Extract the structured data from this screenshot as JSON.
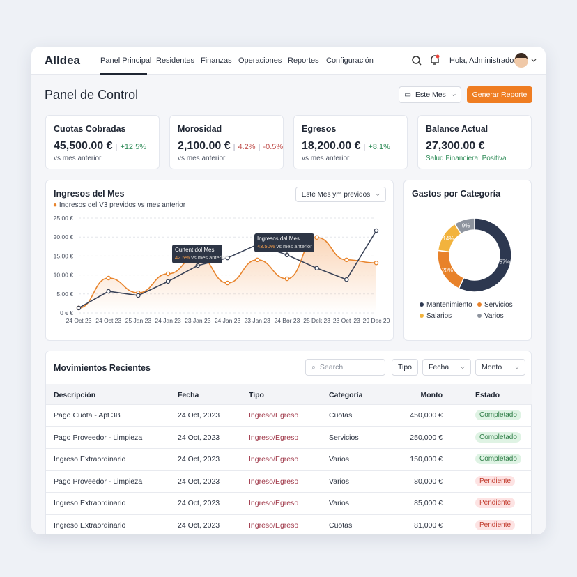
{
  "nav": {
    "logo": "Alldea",
    "items": [
      "Panel Principal",
      "Residentes",
      "Finanzas",
      "Operaciones",
      "Reportes",
      "Configuración"
    ],
    "greeting": "Hola, Administrador"
  },
  "header": {
    "title": "Panel de Control",
    "period": "Este Mes",
    "button": "Generar Reporte"
  },
  "kpis": [
    {
      "label": "Cuotas Cobradas",
      "value": "45,500.00 €",
      "change": "+12.5%",
      "note": "vs mes anterior"
    },
    {
      "label": "Morosidad",
      "value": "2,100.00 €",
      "change": "4.2%",
      "change2": "-0.5%",
      "note": "vs mes anterior"
    },
    {
      "label": "Egresos",
      "value": "18,200.00 €",
      "change": "+8.1%",
      "note": "vs mes anterior"
    },
    {
      "label": "Balance Actual",
      "value": "27,300.00 €",
      "note": "Salud Financiera: Positiva"
    }
  ],
  "income_chart": {
    "type": "line",
    "title": "Ingresos del Mes",
    "dropdown": "Este Mes ym previdos",
    "legend": "Ingresos del V3 previdos vs mes anterior",
    "categories": [
      "24 Oct 23",
      "24 Oct.23",
      "25 Jan 23",
      "24 Jan 23",
      "23 Jan 23",
      "24 Jan 23",
      "23 Jan 23",
      "24 Bor 23",
      "25 Dek 23",
      "23 Oet '23",
      "29 Dec 20"
    ],
    "series": [
      {
        "color": "#e8842c",
        "values": [
          1.3,
          9.2,
          5.3,
          10.3,
          15.1,
          7.9,
          14,
          9,
          19.9,
          14,
          13.2
        ]
      },
      {
        "color": "#3a4358",
        "values": [
          1.3,
          5.7,
          4.6,
          8.3,
          12.5,
          14.5,
          18,
          15.3,
          11.8,
          8.8,
          21.7
        ]
      }
    ],
    "ylim": [
      0,
      25
    ],
    "yticks": [
      {
        "value": 0,
        "label": "0 € €"
      },
      {
        "value": 5,
        "label": "5.00 €"
      },
      {
        "value": 10,
        "label": "10.00 €"
      },
      {
        "value": 15,
        "label": "15.00 €"
      },
      {
        "value": 20,
        "label": "20.00 €"
      },
      {
        "value": 25,
        "label": "25.00 €"
      }
    ],
    "tooltips": [
      {
        "title": "Curtent dol Mes",
        "highlight": "42.5%",
        "text": "vs mes anterior"
      },
      {
        "title": "Ingresos dal Mes",
        "highlight": "43.50%",
        "text": "vs mes anterior"
      }
    ]
  },
  "expense_chart": {
    "type": "pie",
    "title": "Gastos por Categoría",
    "categories": [
      "Mantenimiento",
      "Servicios",
      "Salarios",
      "Varios"
    ],
    "values": [
      57,
      20,
      14,
      9
    ],
    "value_labels": [
      "57%",
      "20%",
      "14%",
      "9%"
    ],
    "colors": [
      "#2d3850",
      "#e8822a",
      "#f2b33d",
      "#8e949e"
    ]
  },
  "movements": {
    "title": "Movimientos Recientes",
    "search": "Search",
    "filters": [
      "Tipo",
      "Fecha",
      "Monto"
    ],
    "columns": [
      "Descripción",
      "Fecha",
      "Tipo",
      "Categoría",
      "Monto",
      "Estado"
    ],
    "rows": [
      [
        "Pago Cuota - Apt 3B",
        "24 Oct, 2023",
        "Ingreso/Egreso",
        "Cuotas",
        "450,000 €",
        "Completado"
      ],
      [
        "Pago Proveedor - Limpieza",
        "24 Oct, 2023",
        "Ingreso/Egreso",
        "Servicios",
        "250,000 €",
        "Completado"
      ],
      [
        "Ingreso Extraordinario",
        "24 Oct, 2023",
        "Ingreso/Egreso",
        "Varios",
        "150,000 €",
        "Completado"
      ],
      [
        "Pago Proveedor - Limpieza",
        "24 Oct, 2023",
        "Ingreso/Egreso",
        "Varios",
        "80,000 €",
        "Pendiente"
      ],
      [
        "Ingreso Extraordinario",
        "24 Oct, 2023",
        "Ingreso/Egreso",
        "Varios",
        "85,000 €",
        "Pendiente"
      ],
      [
        "Ingreso Extraordinario",
        "24 Oct, 2023",
        "Ingreso/Egreso",
        "Cuotas",
        "81,000 €",
        "Pendiente"
      ]
    ]
  }
}
